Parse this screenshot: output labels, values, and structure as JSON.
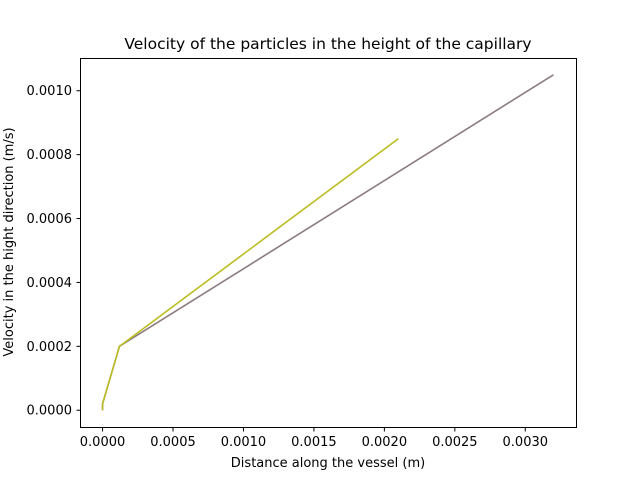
{
  "chart_data": {
    "type": "line",
    "title": "Velocity of the particles in the height of the capillary",
    "xlabel": "Distance along the vessel (m)",
    "ylabel": "Velocity in the hight direction (m/s)",
    "xlim": [
      -0.00016,
      0.00336
    ],
    "ylim": [
      -5.25e-05,
      0.0011025
    ],
    "xticks": [
      0.0,
      0.0005,
      0.001,
      0.0015,
      0.002,
      0.0025,
      0.003
    ],
    "xtick_labels": [
      "0.0000",
      "0.0005",
      "0.0010",
      "0.0015",
      "0.0020",
      "0.0025",
      "0.0030"
    ],
    "yticks": [
      0.0,
      0.0002,
      0.0004,
      0.0006,
      0.0008,
      0.001
    ],
    "ytick_labels": [
      "0.0000",
      "0.0002",
      "0.0004",
      "0.0006",
      "0.0008",
      "0.0010"
    ],
    "grid": false,
    "legend": "none",
    "series": [
      {
        "color": "#8c7a80",
        "x": [
          0.0,
          0.0,
          0.00012,
          0.0032
        ],
        "y": [
          0.0,
          2e-05,
          0.0002,
          0.00105
        ]
      },
      {
        "color": "#bcbd22",
        "x": [
          0.0,
          0.0,
          0.00012,
          0.0021
        ],
        "y": [
          0.0,
          2e-05,
          0.0002,
          0.00085
        ]
      }
    ]
  }
}
